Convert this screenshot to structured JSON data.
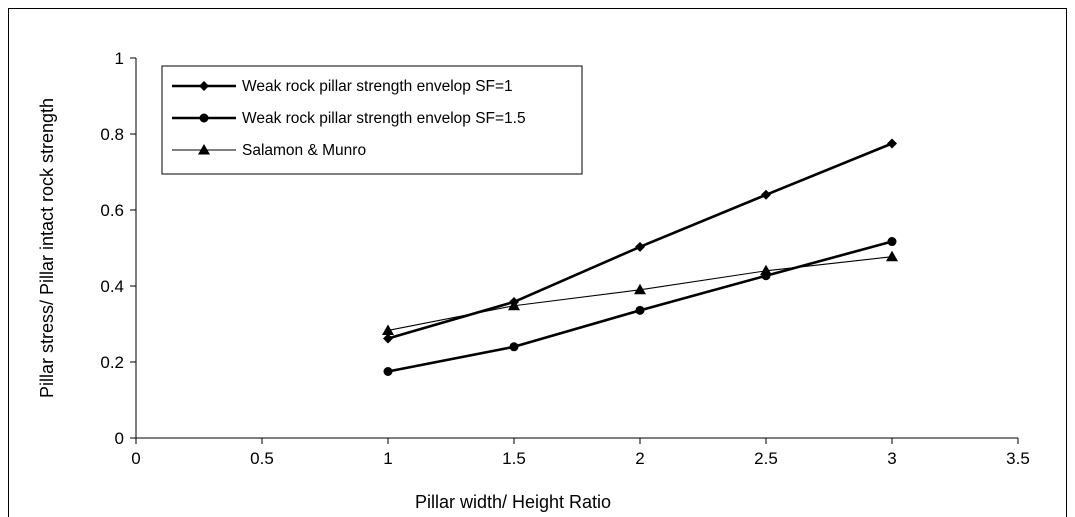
{
  "chart_data": {
    "type": "line",
    "xlabel": "Pillar width/ Height Ratio",
    "ylabel": "Pillar stress/ Pillar intact rock strength",
    "xlim": [
      0,
      3.5
    ],
    "ylim": [
      0,
      1
    ],
    "xticks": [
      "0",
      "0.5",
      "1",
      "1.5",
      "2",
      "2.5",
      "3",
      "3.5"
    ],
    "yticks": [
      "0",
      "0.2",
      "0.4",
      "0.6",
      "0.8",
      "1"
    ],
    "legend_position": "top-left",
    "grid": false,
    "series": [
      {
        "name": "Weak rock pillar strength envelop SF=1",
        "marker": "diamond",
        "stroke": "heavy",
        "color": "#000000",
        "x": [
          1,
          1.5,
          2,
          2.5,
          3
        ],
        "y": [
          0.262,
          0.358,
          0.503,
          0.64,
          0.775
        ]
      },
      {
        "name": "Weak rock pillar strength envelop SF=1.5",
        "marker": "circle",
        "stroke": "heavy",
        "color": "#000000",
        "x": [
          1,
          1.5,
          2,
          2.5,
          3
        ],
        "y": [
          0.175,
          0.24,
          0.336,
          0.427,
          0.517
        ]
      },
      {
        "name": "Salamon & Munro",
        "marker": "triangle",
        "stroke": "thin",
        "color": "#000000",
        "x": [
          1,
          1.5,
          2,
          2.5,
          3
        ],
        "y": [
          0.283,
          0.348,
          0.39,
          0.44,
          0.477
        ]
      }
    ]
  }
}
